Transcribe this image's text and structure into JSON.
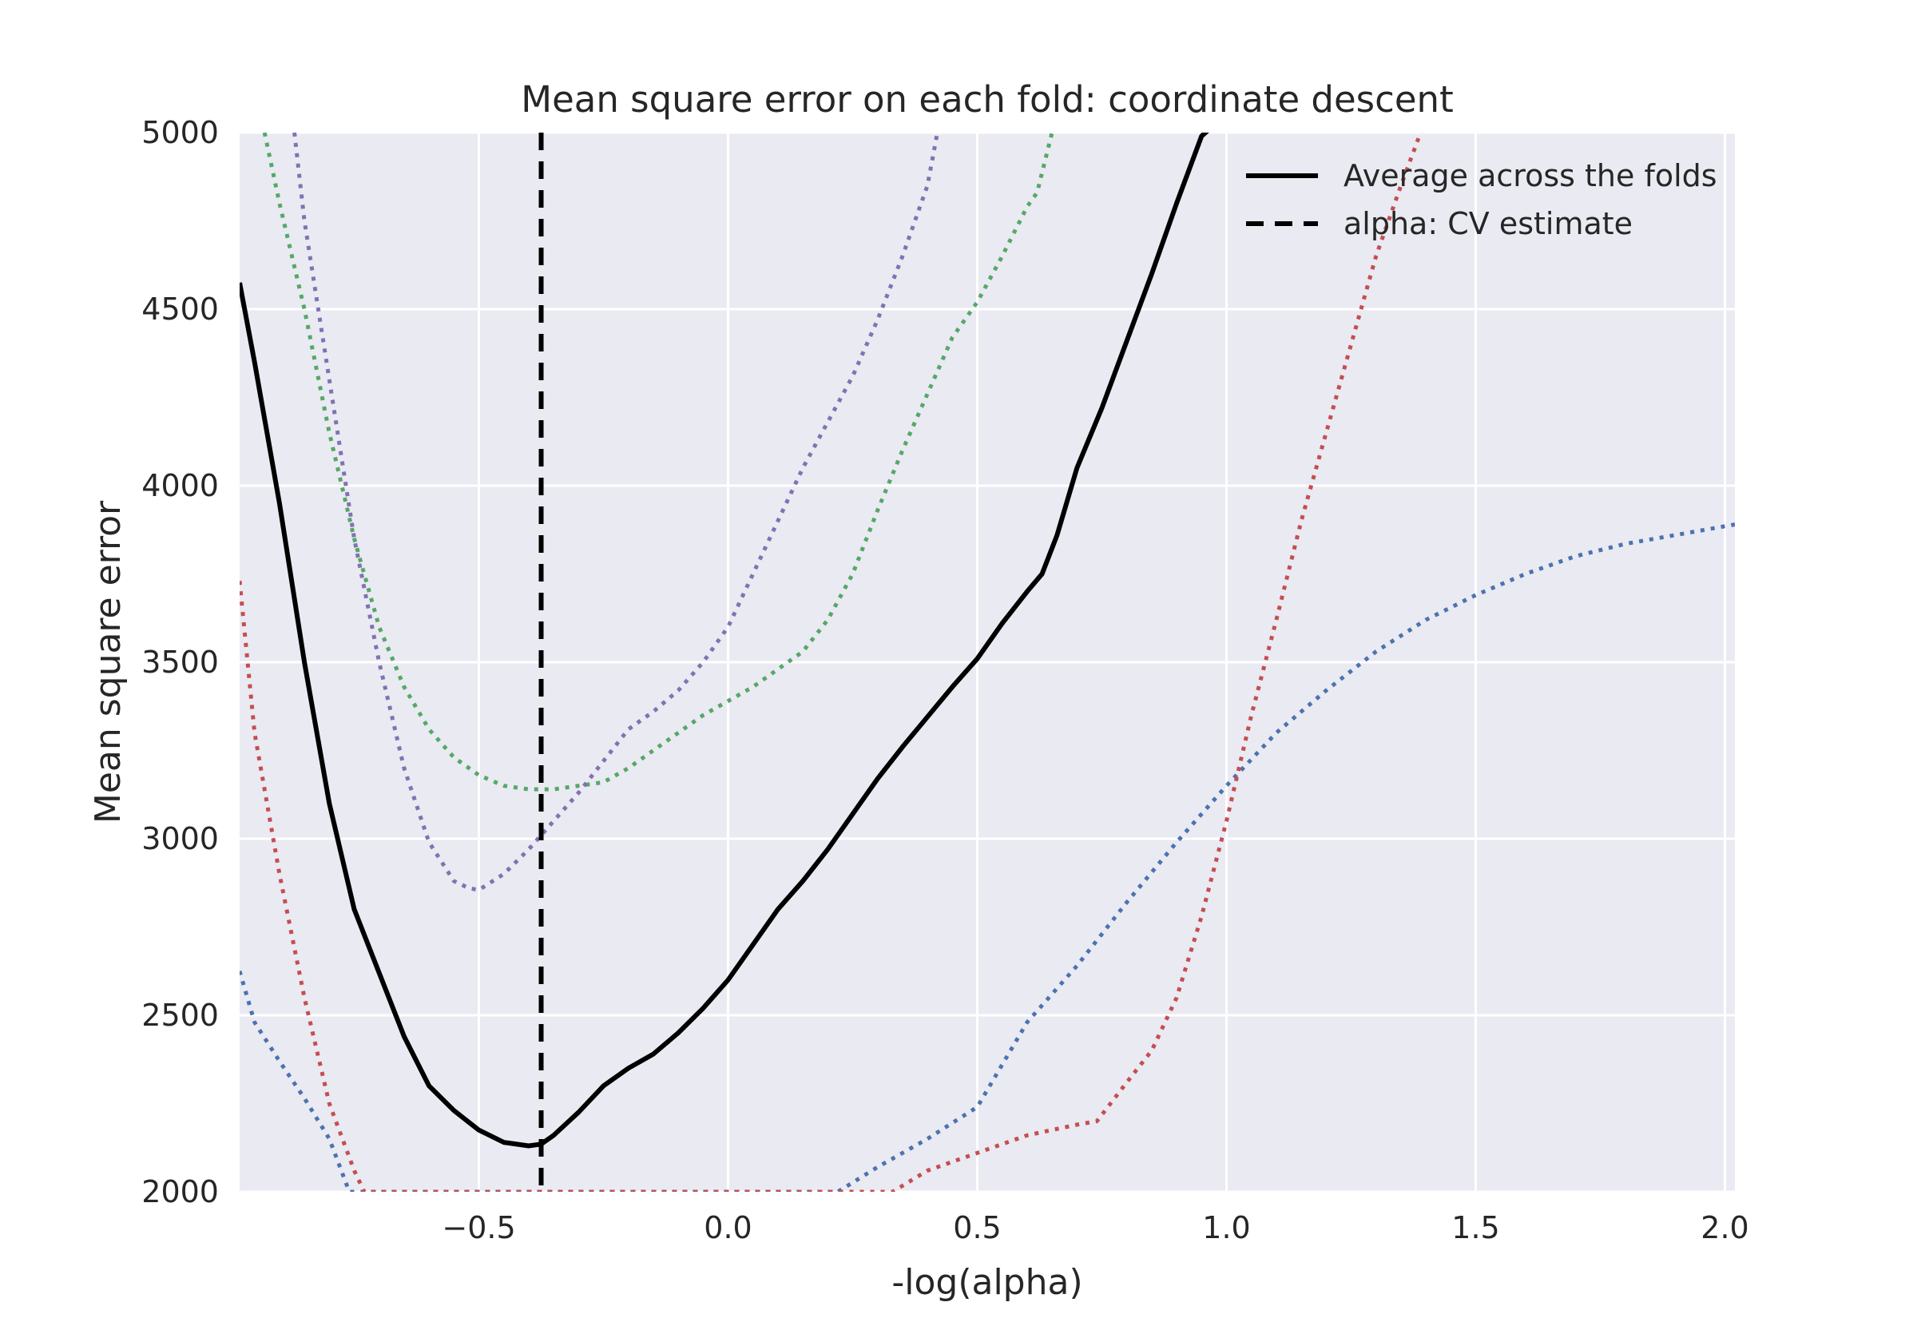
{
  "chart_data": {
    "type": "line",
    "title": "Mean square error on each fold: coordinate descent",
    "xlabel": "-log(alpha)",
    "ylabel": "Mean square error",
    "xlim": [
      -0.98,
      2.02
    ],
    "ylim": [
      2000,
      5000
    ],
    "xticks": [
      -0.5,
      0.0,
      0.5,
      1.0,
      1.5,
      2.0
    ],
    "xtick_labels": [
      "−0.5",
      "0.0",
      "0.5",
      "1.0",
      "1.5",
      "2.0"
    ],
    "yticks": [
      2000,
      2500,
      3000,
      3500,
      4000,
      4500,
      5000
    ],
    "ytick_labels": [
      "2000",
      "2500",
      "3000",
      "3500",
      "4000",
      "4500",
      "5000"
    ],
    "grid": true,
    "background": "#eaeaf2",
    "legend_position": "top-right",
    "legend": [
      {
        "label": "Average across the folds",
        "style": "solid",
        "color": "#000000"
      },
      {
        "label": "alpha: CV estimate",
        "style": "dashed",
        "color": "#000000"
      }
    ],
    "vline": {
      "x": -0.375,
      "style": "dashed",
      "color": "#000000"
    },
    "series": [
      {
        "style": "solid",
        "color": "#000000",
        "width": 6,
        "x": [
          -0.98,
          -0.95,
          -0.9,
          -0.85,
          -0.8,
          -0.75,
          -0.7,
          -0.65,
          -0.6,
          -0.55,
          -0.5,
          -0.45,
          -0.4,
          -0.375,
          -0.35,
          -0.3,
          -0.25,
          -0.2,
          -0.15,
          -0.1,
          -0.05,
          0.0,
          0.05,
          0.1,
          0.15,
          0.2,
          0.25,
          0.3,
          0.35,
          0.4,
          0.45,
          0.5,
          0.55,
          0.6,
          0.63,
          0.66,
          0.7,
          0.75,
          0.8,
          0.85,
          0.9,
          0.95,
          0.99
        ],
        "y": [
          4575,
          4350,
          3950,
          3500,
          3100,
          2800,
          2620,
          2440,
          2300,
          2230,
          2175,
          2140,
          2130,
          2135,
          2160,
          2225,
          2300,
          2350,
          2390,
          2450,
          2520,
          2600,
          2700,
          2800,
          2880,
          2970,
          3070,
          3170,
          3260,
          3345,
          3430,
          3510,
          3610,
          3700,
          3750,
          3860,
          4050,
          4220,
          4410,
          4600,
          4800,
          4990,
          5040
        ]
      },
      {
        "style": "dotted",
        "color": "#4c72b0",
        "width": 5,
        "x": [
          -0.98,
          -0.95,
          -0.9,
          -0.85,
          -0.8,
          -0.76,
          0.22,
          0.3,
          0.4,
          0.5,
          0.6,
          0.7,
          0.8,
          0.9,
          1.0,
          1.1,
          1.2,
          1.3,
          1.4,
          1.5,
          1.6,
          1.7,
          1.8,
          1.9,
          2.02
        ],
        "y": [
          2625,
          2480,
          2370,
          2265,
          2150,
          2000,
          2000,
          2070,
          2150,
          2240,
          2480,
          2640,
          2820,
          2990,
          3150,
          3300,
          3420,
          3530,
          3620,
          3690,
          3750,
          3800,
          3835,
          3860,
          3890
        ]
      },
      {
        "style": "dotted",
        "color": "#55a868",
        "width": 5,
        "x": [
          -0.93,
          -0.9,
          -0.85,
          -0.8,
          -0.75,
          -0.7,
          -0.65,
          -0.6,
          -0.55,
          -0.5,
          -0.45,
          -0.4,
          -0.35,
          -0.3,
          -0.25,
          -0.2,
          -0.15,
          -0.1,
          -0.05,
          0.0,
          0.05,
          0.1,
          0.15,
          0.2,
          0.25,
          0.3,
          0.35,
          0.4,
          0.45,
          0.5,
          0.55,
          0.6,
          0.62,
          0.65
        ],
        "y": [
          5000,
          4800,
          4500,
          4150,
          3850,
          3600,
          3430,
          3310,
          3230,
          3180,
          3150,
          3140,
          3140,
          3150,
          3160,
          3200,
          3250,
          3300,
          3350,
          3390,
          3430,
          3480,
          3530,
          3620,
          3750,
          3930,
          4100,
          4260,
          4420,
          4520,
          4650,
          4790,
          4830,
          5000
        ]
      },
      {
        "style": "dotted",
        "color": "#8172b2",
        "width": 5,
        "x": [
          -0.87,
          -0.85,
          -0.8,
          -0.75,
          -0.7,
          -0.65,
          -0.6,
          -0.55,
          -0.52,
          -0.5,
          -0.45,
          -0.4,
          -0.35,
          -0.3,
          -0.25,
          -0.2,
          -0.15,
          -0.1,
          -0.05,
          0.0,
          0.05,
          0.1,
          0.15,
          0.2,
          0.25,
          0.3,
          0.35,
          0.4,
          0.42
        ],
        "y": [
          5000,
          4750,
          4300,
          3850,
          3500,
          3200,
          2990,
          2880,
          2860,
          2855,
          2900,
          2970,
          3050,
          3130,
          3220,
          3310,
          3360,
          3420,
          3500,
          3600,
          3750,
          3900,
          4050,
          4180,
          4310,
          4470,
          4650,
          4850,
          5000
        ]
      },
      {
        "style": "dotted",
        "color": "#c44e52",
        "width": 5,
        "x": [
          -0.98,
          -0.95,
          -0.9,
          -0.85,
          -0.8,
          -0.75,
          -0.73,
          0.33,
          0.4,
          0.5,
          0.6,
          0.7,
          0.74,
          0.8,
          0.85,
          0.9,
          0.95,
          1.0,
          1.05,
          1.1,
          1.15,
          1.2,
          1.25,
          1.3,
          1.35,
          1.4
        ],
        "y": [
          3730,
          3300,
          2900,
          2550,
          2250,
          2060,
          2000,
          2000,
          2060,
          2110,
          2160,
          2190,
          2200,
          2310,
          2400,
          2550,
          2780,
          3050,
          3350,
          3620,
          3900,
          4150,
          4400,
          4650,
          4850,
          5040
        ]
      }
    ]
  }
}
